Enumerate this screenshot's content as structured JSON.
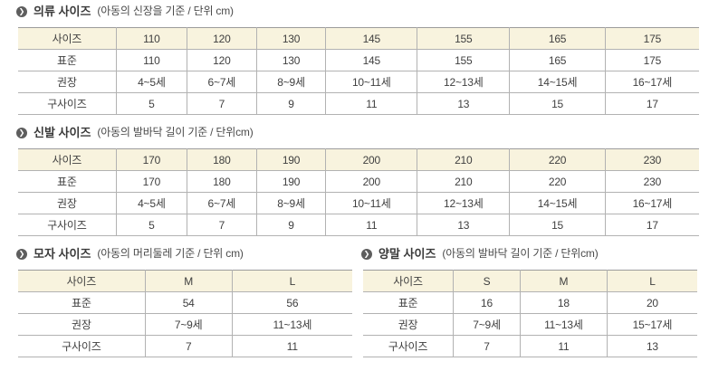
{
  "icons": {
    "bullet_glyph": "❯"
  },
  "colors": {
    "header_bg": "#f8f3de",
    "border_top": "#9c9c9c",
    "border_inner": "#b2b2b2",
    "bullet_bg": "#5e5e5e",
    "text": "#404040"
  },
  "sections": [
    {
      "id": "clothing",
      "title": "의류 사이즈",
      "subtitle": "(아동의 신장을 기준 / 단위 cm)",
      "rows": [
        {
          "label": "사이즈",
          "values": [
            "110",
            "120",
            "130",
            "145",
            "155",
            "165",
            "175"
          ]
        },
        {
          "label": "표준",
          "values": [
            "110",
            "120",
            "130",
            "145",
            "155",
            "165",
            "175"
          ]
        },
        {
          "label": "권장",
          "values": [
            "4~5세",
            "6~7세",
            "8~9세",
            "10~11세",
            "12~13세",
            "14~15세",
            "16~17세"
          ]
        },
        {
          "label": "구사이즈",
          "values": [
            "5",
            "7",
            "9",
            "11",
            "13",
            "15",
            "17"
          ]
        }
      ]
    },
    {
      "id": "shoes",
      "title": "신발 사이즈",
      "subtitle": "(아동의 발바닥 길이 기준 / 단위cm)",
      "rows": [
        {
          "label": "사이즈",
          "values": [
            "170",
            "180",
            "190",
            "200",
            "210",
            "220",
            "230"
          ]
        },
        {
          "label": "표준",
          "values": [
            "170",
            "180",
            "190",
            "200",
            "210",
            "220",
            "230"
          ]
        },
        {
          "label": "권장",
          "values": [
            "4~5세",
            "6~7세",
            "8~9세",
            "10~11세",
            "12~13세",
            "14~15세",
            "16~17세"
          ]
        },
        {
          "label": "구사이즈",
          "values": [
            "5",
            "7",
            "9",
            "11",
            "13",
            "15",
            "17"
          ]
        }
      ]
    },
    {
      "id": "hat",
      "title": "모자 사이즈",
      "subtitle": "(아동의 머리둘레 기준 / 단위 cm)",
      "rows": [
        {
          "label": "사이즈",
          "values": [
            "M",
            "L"
          ]
        },
        {
          "label": "표준",
          "values": [
            "54",
            "56"
          ]
        },
        {
          "label": "권장",
          "values": [
            "7~9세",
            "11~13세"
          ]
        },
        {
          "label": "구사이즈",
          "values": [
            "7",
            "11"
          ]
        }
      ]
    },
    {
      "id": "socks",
      "title": "양말 사이즈",
      "subtitle": "(아동의 발바닥 길이 기준 / 단위cm)",
      "rows": [
        {
          "label": "사이즈",
          "values": [
            "S",
            "M",
            "L"
          ]
        },
        {
          "label": "표준",
          "values": [
            "16",
            "18",
            "20"
          ]
        },
        {
          "label": "권장",
          "values": [
            "7~9세",
            "11~13세",
            "15~17세"
          ]
        },
        {
          "label": "구사이즈",
          "values": [
            "7",
            "11",
            "13"
          ]
        }
      ]
    }
  ]
}
